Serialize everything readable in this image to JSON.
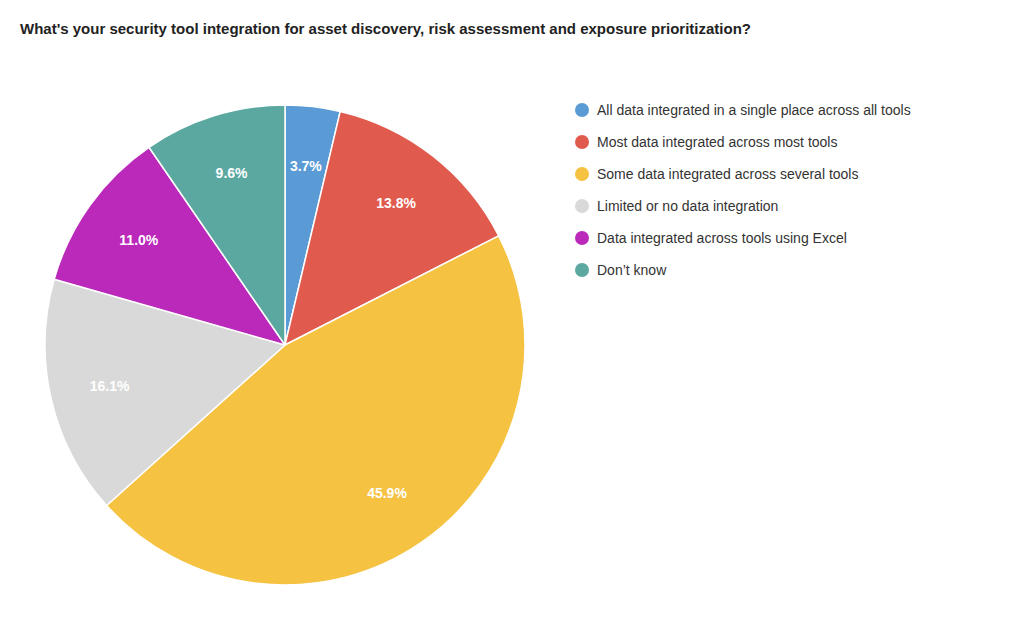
{
  "chart_data": {
    "type": "pie",
    "title": "What's your security tool integration for asset discovery, risk assessment and exposure prioritization?",
    "categories": [
      "All data integrated in a single place across all tools",
      "Most data integrated across most tools",
      "Some data integrated across several tools",
      "Limited or no data integration",
      "Data integrated across tools using Excel",
      "Don’t know"
    ],
    "values": [
      3.7,
      13.8,
      45.9,
      16.1,
      11.0,
      9.6
    ],
    "value_labels": [
      "3.7%",
      "13.8%",
      "45.9%",
      "16.1%",
      "11.0%",
      "9.6%"
    ],
    "colors": [
      "#5B9BD5",
      "#E05A4E",
      "#F5C242",
      "#D9D9D9",
      "#BB29BB",
      "#5BA8A0"
    ],
    "data_labels": true,
    "legend": "upper right"
  }
}
